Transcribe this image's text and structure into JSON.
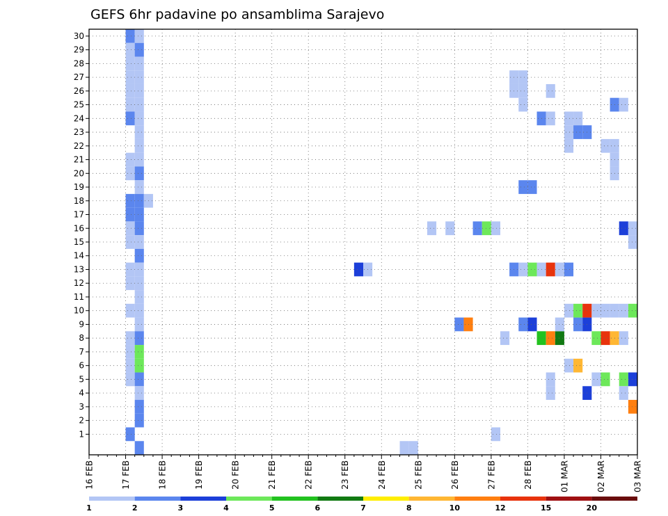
{
  "chart_data": {
    "type": "heatmap",
    "title": "GEFS 6hr padavine po ansamblima Sarajevo",
    "y_ticks": [
      "1",
      "2",
      "3",
      "4",
      "5",
      "6",
      "7",
      "8",
      "9",
      "10",
      "11",
      "12",
      "13",
      "14",
      "15",
      "16",
      "17",
      "18",
      "19",
      "20",
      "21",
      "22",
      "23",
      "24",
      "25",
      "26",
      "27",
      "28",
      "29",
      "30"
    ],
    "x_ticks": [
      "16 FEB",
      "17 FEB",
      "18 FEB",
      "19 FEB",
      "20 FEB",
      "21 FEB",
      "22 FEB",
      "23 FEB",
      "24 FEB",
      "25 FEB",
      "26 FEB",
      "27 FEB",
      "28 FEB",
      "01 MAR",
      "02 MAR",
      "03 MAR"
    ],
    "x_step_hours": 6,
    "grid": true,
    "colorbar": {
      "labels": [
        "1",
        "2",
        "3",
        "4",
        "5",
        "6",
        "7",
        "8",
        "10",
        "12",
        "15",
        "20"
      ],
      "colors": [
        "#b3c6f5",
        "#5b86ee",
        "#1c3fd9",
        "#6de85a",
        "#22c21f",
        "#117a12",
        "#ffee00",
        "#ffb733",
        "#ff7f10",
        "#e8330d",
        "#a01012",
        "#6a0d0d"
      ]
    },
    "cells": [
      {
        "t": 4,
        "m": 30,
        "c": 1
      },
      {
        "t": 5,
        "m": 30,
        "c": 0
      },
      {
        "t": 4,
        "m": 29,
        "c": 0
      },
      {
        "t": 5,
        "m": 29,
        "c": 1
      },
      {
        "t": 4,
        "m": 28,
        "c": 0
      },
      {
        "t": 5,
        "m": 28,
        "c": 0
      },
      {
        "t": 4,
        "m": 27,
        "c": 0
      },
      {
        "t": 5,
        "m": 27,
        "c": 0
      },
      {
        "t": 4,
        "m": 26,
        "c": 0
      },
      {
        "t": 5,
        "m": 26,
        "c": 0
      },
      {
        "t": 4,
        "m": 25,
        "c": 0
      },
      {
        "t": 5,
        "m": 25,
        "c": 0
      },
      {
        "t": 4,
        "m": 24,
        "c": 1
      },
      {
        "t": 5,
        "m": 24,
        "c": 0
      },
      {
        "t": 5,
        "m": 23,
        "c": 0
      },
      {
        "t": 5,
        "m": 22,
        "c": 0
      },
      {
        "t": 4,
        "m": 21,
        "c": 0
      },
      {
        "t": 5,
        "m": 21,
        "c": 0
      },
      {
        "t": 4,
        "m": 20,
        "c": 0
      },
      {
        "t": 5,
        "m": 20,
        "c": 1
      },
      {
        "t": 5,
        "m": 19,
        "c": 0
      },
      {
        "t": 4,
        "m": 18,
        "c": 1
      },
      {
        "t": 5,
        "m": 18,
        "c": 1
      },
      {
        "t": 6,
        "m": 18,
        "c": 0
      },
      {
        "t": 4,
        "m": 17,
        "c": 1
      },
      {
        "t": 5,
        "m": 17,
        "c": 1
      },
      {
        "t": 4,
        "m": 16,
        "c": 0
      },
      {
        "t": 5,
        "m": 16,
        "c": 1
      },
      {
        "t": 4,
        "m": 15,
        "c": 0
      },
      {
        "t": 5,
        "m": 15,
        "c": 0
      },
      {
        "t": 5,
        "m": 14,
        "c": 1
      },
      {
        "t": 4,
        "m": 13,
        "c": 0
      },
      {
        "t": 5,
        "m": 13,
        "c": 0
      },
      {
        "t": 4,
        "m": 12,
        "c": 0
      },
      {
        "t": 5,
        "m": 12,
        "c": 0
      },
      {
        "t": 5,
        "m": 11,
        "c": 0
      },
      {
        "t": 4,
        "m": 10,
        "c": 0
      },
      {
        "t": 5,
        "m": 10,
        "c": 0
      },
      {
        "t": 5,
        "m": 9,
        "c": 0
      },
      {
        "t": 4,
        "m": 8,
        "c": 0
      },
      {
        "t": 5,
        "m": 8,
        "c": 1
      },
      {
        "t": 4,
        "m": 7,
        "c": 0
      },
      {
        "t": 5,
        "m": 7,
        "c": 3
      },
      {
        "t": 4,
        "m": 6,
        "c": 0
      },
      {
        "t": 5,
        "m": 6,
        "c": 3
      },
      {
        "t": 4,
        "m": 5,
        "c": 0
      },
      {
        "t": 5,
        "m": 5,
        "c": 1
      },
      {
        "t": 5,
        "m": 4,
        "c": 0
      },
      {
        "t": 5,
        "m": 3,
        "c": 1
      },
      {
        "t": 5,
        "m": 2,
        "c": 1
      },
      {
        "t": 4,
        "m": 1,
        "c": 1
      },
      {
        "t": 5,
        "m": 0,
        "c": 1
      },
      {
        "t": 29,
        "m": 13,
        "c": 2
      },
      {
        "t": 30,
        "m": 13,
        "c": 0
      },
      {
        "t": 34,
        "m": 0,
        "c": 0
      },
      {
        "t": 35,
        "m": 0,
        "c": 0
      },
      {
        "t": 37,
        "m": 16,
        "c": 0
      },
      {
        "t": 39,
        "m": 16,
        "c": 0
      },
      {
        "t": 40,
        "m": 9,
        "c": 1
      },
      {
        "t": 41,
        "m": 9,
        "c": 8
      },
      {
        "t": 42,
        "m": 16,
        "c": 1
      },
      {
        "t": 43,
        "m": 16,
        "c": 3
      },
      {
        "t": 44,
        "m": 16,
        "c": 0
      },
      {
        "t": 44,
        "m": 1,
        "c": 0
      },
      {
        "t": 45,
        "m": 8,
        "c": 0
      },
      {
        "t": 46,
        "m": 27,
        "c": 0
      },
      {
        "t": 47,
        "m": 27,
        "c": 0
      },
      {
        "t": 46,
        "m": 26,
        "c": 0
      },
      {
        "t": 47,
        "m": 26,
        "c": 0
      },
      {
        "t": 47,
        "m": 25,
        "c": 0
      },
      {
        "t": 47,
        "m": 19,
        "c": 1
      },
      {
        "t": 48,
        "m": 19,
        "c": 1
      },
      {
        "t": 46,
        "m": 13,
        "c": 1
      },
      {
        "t": 47,
        "m": 13,
        "c": 0
      },
      {
        "t": 48,
        "m": 13,
        "c": 3
      },
      {
        "t": 49,
        "m": 13,
        "c": 0
      },
      {
        "t": 50,
        "m": 13,
        "c": 9
      },
      {
        "t": 51,
        "m": 13,
        "c": 0
      },
      {
        "t": 52,
        "m": 13,
        "c": 1
      },
      {
        "t": 47,
        "m": 9,
        "c": 1
      },
      {
        "t": 48,
        "m": 9,
        "c": 2
      },
      {
        "t": 49,
        "m": 8,
        "c": 4
      },
      {
        "t": 50,
        "m": 8,
        "c": 8
      },
      {
        "t": 51,
        "m": 8,
        "c": 5
      },
      {
        "t": 49,
        "m": 24,
        "c": 1
      },
      {
        "t": 50,
        "m": 24,
        "c": 0
      },
      {
        "t": 50,
        "m": 26,
        "c": 0
      },
      {
        "t": 50,
        "m": 5,
        "c": 0
      },
      {
        "t": 50,
        "m": 4,
        "c": 0
      },
      {
        "t": 52,
        "m": 24,
        "c": 0
      },
      {
        "t": 53,
        "m": 24,
        "c": 0
      },
      {
        "t": 52,
        "m": 23,
        "c": 0
      },
      {
        "t": 53,
        "m": 23,
        "c": 1
      },
      {
        "t": 54,
        "m": 23,
        "c": 1
      },
      {
        "t": 52,
        "m": 22,
        "c": 0
      },
      {
        "t": 51,
        "m": 9,
        "c": 0
      },
      {
        "t": 53,
        "m": 9,
        "c": 1
      },
      {
        "t": 54,
        "m": 9,
        "c": 2
      },
      {
        "t": 52,
        "m": 10,
        "c": 0
      },
      {
        "t": 53,
        "m": 10,
        "c": 3
      },
      {
        "t": 54,
        "m": 10,
        "c": 9
      },
      {
        "t": 55,
        "m": 10,
        "c": 0
      },
      {
        "t": 56,
        "m": 10,
        "c": 0
      },
      {
        "t": 57,
        "m": 10,
        "c": 0
      },
      {
        "t": 58,
        "m": 10,
        "c": 0
      },
      {
        "t": 59,
        "m": 10,
        "c": 3
      },
      {
        "t": 52,
        "m": 6,
        "c": 0
      },
      {
        "t": 53,
        "m": 6,
        "c": 7
      },
      {
        "t": 54,
        "m": 4,
        "c": 2
      },
      {
        "t": 55,
        "m": 8,
        "c": 3
      },
      {
        "t": 56,
        "m": 8,
        "c": 9
      },
      {
        "t": 57,
        "m": 8,
        "c": 7
      },
      {
        "t": 58,
        "m": 8,
        "c": 0
      },
      {
        "t": 55,
        "m": 5,
        "c": 0
      },
      {
        "t": 56,
        "m": 5,
        "c": 3
      },
      {
        "t": 58,
        "m": 5,
        "c": 3
      },
      {
        "t": 59,
        "m": 5,
        "c": 2
      },
      {
        "t": 58,
        "m": 4,
        "c": 0
      },
      {
        "t": 59,
        "m": 3,
        "c": 8
      },
      {
        "t": 56,
        "m": 22,
        "c": 0
      },
      {
        "t": 57,
        "m": 22,
        "c": 0
      },
      {
        "t": 57,
        "m": 21,
        "c": 0
      },
      {
        "t": 57,
        "m": 20,
        "c": 0
      },
      {
        "t": 57,
        "m": 25,
        "c": 1
      },
      {
        "t": 58,
        "m": 25,
        "c": 0
      },
      {
        "t": 58,
        "m": 16,
        "c": 2
      },
      {
        "t": 59,
        "m": 16,
        "c": 0
      },
      {
        "t": 59,
        "m": 15,
        "c": 0
      }
    ]
  }
}
